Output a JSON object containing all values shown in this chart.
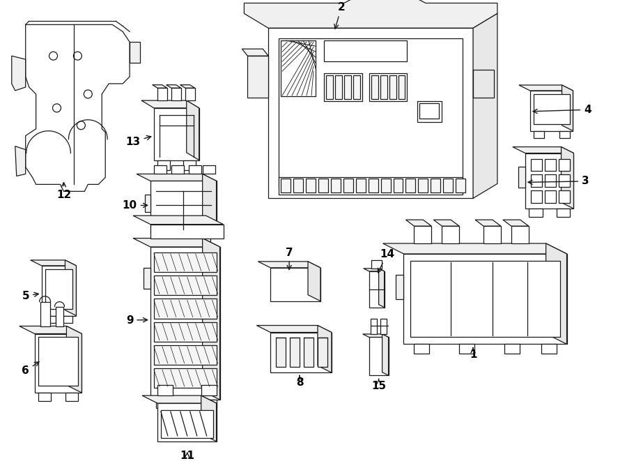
{
  "bg_color": "#ffffff",
  "line_color": "#1a1a1a",
  "lw": 0.9,
  "figsize": [
    9.0,
    6.61
  ],
  "dpi": 100
}
